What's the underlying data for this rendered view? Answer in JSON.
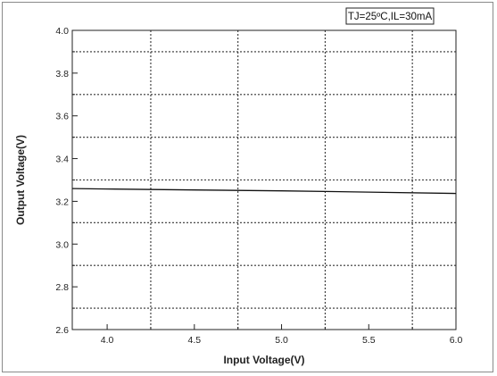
{
  "chart_data": {
    "type": "line",
    "title": "",
    "xlabel": "Input Voltage(V)",
    "ylabel": "Output Voltage(V)",
    "xlim": [
      3.8,
      6.0
    ],
    "ylim": [
      2.6,
      4.0
    ],
    "x_ticks": [
      "4.0",
      "4.5",
      "5.0",
      "5.5",
      "6.0"
    ],
    "y_ticks": [
      "2.6",
      "2.8",
      "3.0",
      "3.2",
      "3.4",
      "3.6",
      "3.8",
      "4.0"
    ],
    "grid": true,
    "annotation": "TJ=25ºC,IL=30mA",
    "series": [
      {
        "x": [
          3.8,
          4.0,
          4.5,
          5.0,
          5.5,
          6.0
        ],
        "y": [
          3.26,
          3.258,
          3.253,
          3.249,
          3.243,
          3.237
        ]
      }
    ],
    "colors": {
      "line": "#111111",
      "grid": "#333333",
      "axis": "#222222"
    }
  }
}
